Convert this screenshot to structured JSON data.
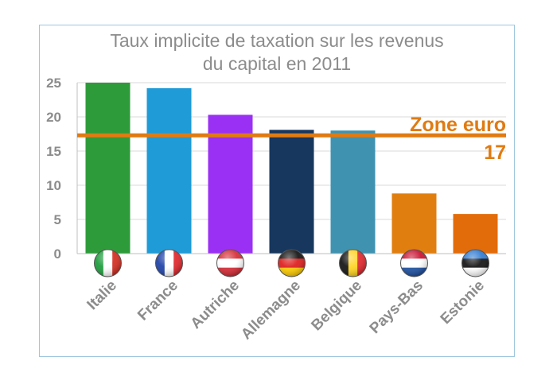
{
  "chart_data": {
    "type": "bar",
    "title_lines": [
      "Taux implicite de taxation sur les revenus",
      "du capital en 2011"
    ],
    "categories": [
      "Italie",
      "France",
      "Autriche",
      "Allemagne",
      "Belgique",
      "Pays-Bas",
      "Estonie"
    ],
    "values": [
      25.0,
      24.2,
      20.3,
      18.1,
      18.0,
      8.8,
      5.8
    ],
    "colors": [
      "#2e9b3a",
      "#1f9bd7",
      "#9b30f5",
      "#17375e",
      "#3f93b0",
      "#e07f10",
      "#e36c0a"
    ],
    "yticks": [
      0,
      5,
      10,
      15,
      20,
      25
    ],
    "ylim": [
      0,
      25
    ],
    "grid": true,
    "flags": [
      "italy-flag-icon",
      "france-flag-icon",
      "austria-flag-icon",
      "germany-flag-icon",
      "belgium-flag-icon",
      "netherlands-flag-icon",
      "estonia-flag-icon"
    ],
    "reference_line": {
      "value": 17.3,
      "label_line1": "Zone euro",
      "label_line2": "17",
      "color": "#e07b12"
    }
  }
}
